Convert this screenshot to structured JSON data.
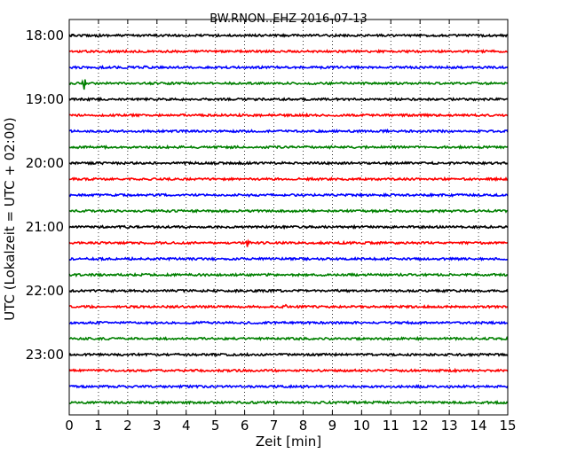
{
  "chart_data": {
    "type": "line",
    "title": "BW.RNON..EHZ 2016-07-13",
    "xlabel": "Zeit  [min]",
    "ylabel": "UTC (Lokalzeit = UTC + 02:00)",
    "xlim": [
      0,
      15
    ],
    "x_ticks": [
      "0",
      "1",
      "2",
      "3",
      "4",
      "5",
      "6",
      "7",
      "8",
      "9",
      "10",
      "11",
      "12",
      "13",
      "14",
      "15"
    ],
    "y_tick_labels": [
      "18:00",
      "19:00",
      "20:00",
      "21:00",
      "22:00",
      "23:00"
    ],
    "grid": "vertical-dotted",
    "colors": {
      "black": "#000000",
      "red": "#ff0000",
      "blue": "#0000ff",
      "green": "#008000"
    },
    "traces": [
      {
        "start": "18:00",
        "color": "black",
        "events": [
          {
            "min": 2.5,
            "amp": 2
          }
        ]
      },
      {
        "start": "18:15",
        "color": "red",
        "events": []
      },
      {
        "start": "18:30",
        "color": "blue",
        "events": [
          {
            "min": 2.6,
            "amp": 1.5
          }
        ]
      },
      {
        "start": "18:45",
        "color": "green",
        "events": [
          {
            "min": 0.5,
            "amp": 20
          }
        ]
      },
      {
        "start": "19:00",
        "color": "black",
        "events": [
          {
            "min": 4.0,
            "amp": 1.2
          }
        ]
      },
      {
        "start": "19:15",
        "color": "red",
        "events": [
          {
            "min": 11.6,
            "amp": 3.5
          }
        ]
      },
      {
        "start": "19:30",
        "color": "blue",
        "events": []
      },
      {
        "start": "19:45",
        "color": "green",
        "events": [
          {
            "min": 6.2,
            "amp": 2
          },
          {
            "min": 8.9,
            "amp": 2
          }
        ]
      },
      {
        "start": "20:00",
        "color": "black",
        "events": []
      },
      {
        "start": "20:15",
        "color": "red",
        "events": []
      },
      {
        "start": "20:30",
        "color": "blue",
        "events": [
          {
            "min": 6.2,
            "amp": 2
          }
        ]
      },
      {
        "start": "20:45",
        "color": "green",
        "events": []
      },
      {
        "start": "21:00",
        "color": "black",
        "events": []
      },
      {
        "start": "21:15",
        "color": "red",
        "events": [
          {
            "min": 6.1,
            "amp": 8
          }
        ]
      },
      {
        "start": "21:30",
        "color": "blue",
        "events": []
      },
      {
        "start": "21:45",
        "color": "green",
        "events": []
      },
      {
        "start": "22:00",
        "color": "black",
        "events": []
      },
      {
        "start": "22:15",
        "color": "red",
        "events": [
          {
            "min": 7.4,
            "amp": 2
          }
        ]
      },
      {
        "start": "22:30",
        "color": "blue",
        "events": []
      },
      {
        "start": "22:45",
        "color": "green",
        "events": [
          {
            "min": 9.6,
            "amp": 1.5
          }
        ]
      },
      {
        "start": "23:00",
        "color": "black",
        "events": []
      },
      {
        "start": "23:15",
        "color": "red",
        "events": []
      },
      {
        "start": "23:30",
        "color": "blue",
        "events": []
      },
      {
        "start": "23:45",
        "color": "green",
        "events": []
      }
    ]
  }
}
